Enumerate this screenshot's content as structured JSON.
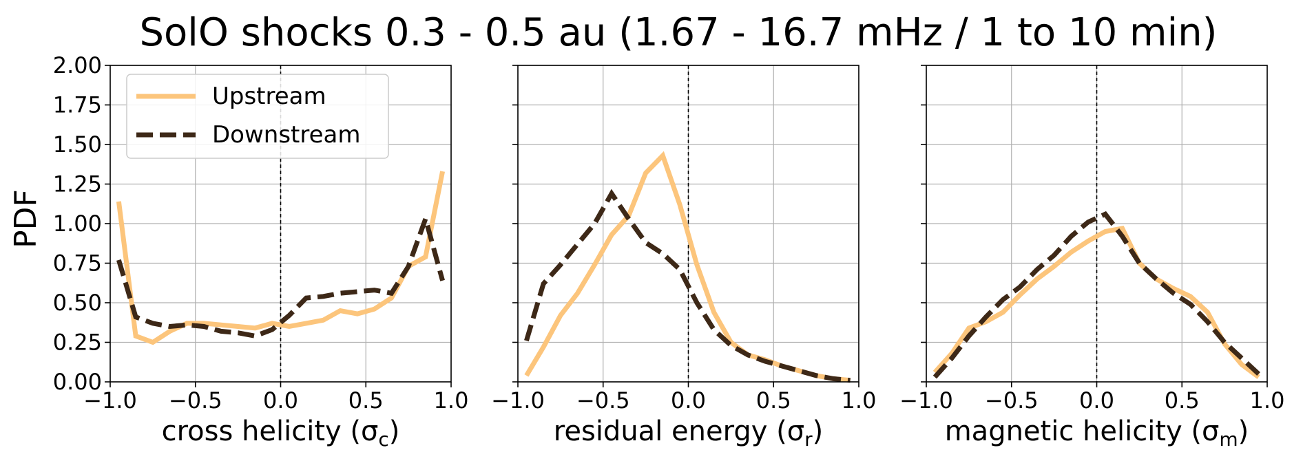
{
  "title": "SolO shocks 0.3 - 0.5 au (1.67 - 16.7 mHz / 1 to 10 min)",
  "ylabel": "PDF",
  "colors": {
    "upstream": "#fcc57c",
    "downstream": "#3d2817"
  },
  "legend": {
    "placement": "upper-left (first panel)",
    "upstream": "Upstream",
    "downstream": "Downstream"
  },
  "chart_data": [
    {
      "type": "line",
      "xlabel": {
        "text": "cross helicity (σ",
        "sub": "c",
        "close": ")"
      },
      "xlim": [
        -1.0,
        1.0
      ],
      "ylim": [
        0.0,
        2.0
      ],
      "grid": true,
      "vline": 0.0,
      "xticks": [
        "−1.0",
        "−0.5",
        "0.0",
        "0.5",
        "1.0"
      ],
      "xtick_values": [
        -1.0,
        -0.5,
        0.0,
        0.5,
        1.0
      ],
      "yticks": [
        "0.00",
        "0.25",
        "0.50",
        "0.75",
        "1.00",
        "1.25",
        "1.50",
        "1.75",
        "2.00"
      ],
      "ytick_values": [
        0.0,
        0.25,
        0.5,
        0.75,
        1.0,
        1.25,
        1.5,
        1.75,
        2.0
      ],
      "x": [
        -0.95,
        -0.85,
        -0.75,
        -0.65,
        -0.55,
        -0.45,
        -0.35,
        -0.25,
        -0.15,
        -0.05,
        0.05,
        0.15,
        0.25,
        0.35,
        0.45,
        0.55,
        0.65,
        0.75,
        0.85,
        0.95
      ],
      "series": [
        {
          "name": "Upstream",
          "values": [
            1.14,
            0.29,
            0.25,
            0.32,
            0.37,
            0.37,
            0.36,
            0.35,
            0.34,
            0.37,
            0.35,
            0.37,
            0.39,
            0.45,
            0.43,
            0.46,
            0.53,
            0.73,
            0.79,
            1.33
          ]
        },
        {
          "name": "Downstream",
          "values": [
            0.77,
            0.41,
            0.37,
            0.35,
            0.36,
            0.35,
            0.32,
            0.31,
            0.29,
            0.33,
            0.42,
            0.53,
            0.54,
            0.56,
            0.57,
            0.58,
            0.56,
            0.73,
            1.03,
            0.64
          ]
        }
      ]
    },
    {
      "type": "line",
      "xlabel": {
        "text": "residual energy (σ",
        "sub": "r",
        "close": ")"
      },
      "xlim": [
        -1.0,
        1.0
      ],
      "ylim": [
        0.0,
        2.0
      ],
      "grid": true,
      "vline": 0.0,
      "xticks": [
        "−1.0",
        "−0.5",
        "0.0",
        "0.5",
        "1.0"
      ],
      "xtick_values": [
        -1.0,
        -0.5,
        0.0,
        0.5,
        1.0
      ],
      "yticks": [
        "0.00",
        "0.25",
        "0.50",
        "0.75",
        "1.00",
        "1.25",
        "1.50",
        "1.75",
        "2.00"
      ],
      "ytick_values": [
        0.0,
        0.25,
        0.5,
        0.75,
        1.0,
        1.25,
        1.5,
        1.75,
        2.0
      ],
      "x": [
        -0.95,
        -0.85,
        -0.75,
        -0.65,
        -0.55,
        -0.45,
        -0.35,
        -0.25,
        -0.15,
        -0.05,
        0.05,
        0.15,
        0.25,
        0.35,
        0.45,
        0.55,
        0.65,
        0.75,
        0.85,
        0.95
      ],
      "series": [
        {
          "name": "Upstream",
          "values": [
            0.04,
            0.22,
            0.42,
            0.56,
            0.74,
            0.93,
            1.05,
            1.32,
            1.43,
            1.12,
            0.74,
            0.44,
            0.25,
            0.17,
            0.14,
            0.1,
            0.07,
            0.04,
            0.02,
            0.01
          ]
        },
        {
          "name": "Downstream",
          "values": [
            0.26,
            0.62,
            0.74,
            0.87,
            1.0,
            1.19,
            1.03,
            0.88,
            0.81,
            0.71,
            0.5,
            0.33,
            0.23,
            0.17,
            0.13,
            0.1,
            0.07,
            0.04,
            0.02,
            0.01
          ]
        }
      ]
    },
    {
      "type": "line",
      "xlabel": {
        "text": "magnetic helicity (σ",
        "sub": "m",
        "close": ")"
      },
      "xlim": [
        -1.0,
        1.0
      ],
      "ylim": [
        0.0,
        2.0
      ],
      "grid": true,
      "vline": 0.0,
      "xticks": [
        "−1.0",
        "−0.5",
        "0.0",
        "0.5",
        "1.0"
      ],
      "xtick_values": [
        -1.0,
        -0.5,
        0.0,
        0.5,
        1.0
      ],
      "yticks": [
        "0.00",
        "0.25",
        "0.50",
        "0.75",
        "1.00",
        "1.25",
        "1.50",
        "1.75",
        "2.00"
      ],
      "ytick_values": [
        0.0,
        0.25,
        0.5,
        0.75,
        1.0,
        1.25,
        1.5,
        1.75,
        2.0
      ],
      "x": [
        -0.95,
        -0.85,
        -0.75,
        -0.65,
        -0.55,
        -0.45,
        -0.35,
        -0.25,
        -0.15,
        -0.05,
        0.05,
        0.15,
        0.25,
        0.35,
        0.45,
        0.55,
        0.65,
        0.75,
        0.85,
        0.95
      ],
      "series": [
        {
          "name": "Upstream",
          "values": [
            0.06,
            0.18,
            0.34,
            0.38,
            0.44,
            0.55,
            0.65,
            0.73,
            0.82,
            0.89,
            0.95,
            0.97,
            0.75,
            0.65,
            0.59,
            0.54,
            0.44,
            0.24,
            0.11,
            0.03
          ]
        },
        {
          "name": "Downstream",
          "values": [
            0.03,
            0.15,
            0.29,
            0.41,
            0.52,
            0.6,
            0.71,
            0.8,
            0.92,
            1.01,
            1.06,
            0.92,
            0.75,
            0.65,
            0.56,
            0.49,
            0.38,
            0.25,
            0.15,
            0.05
          ]
        }
      ]
    }
  ]
}
